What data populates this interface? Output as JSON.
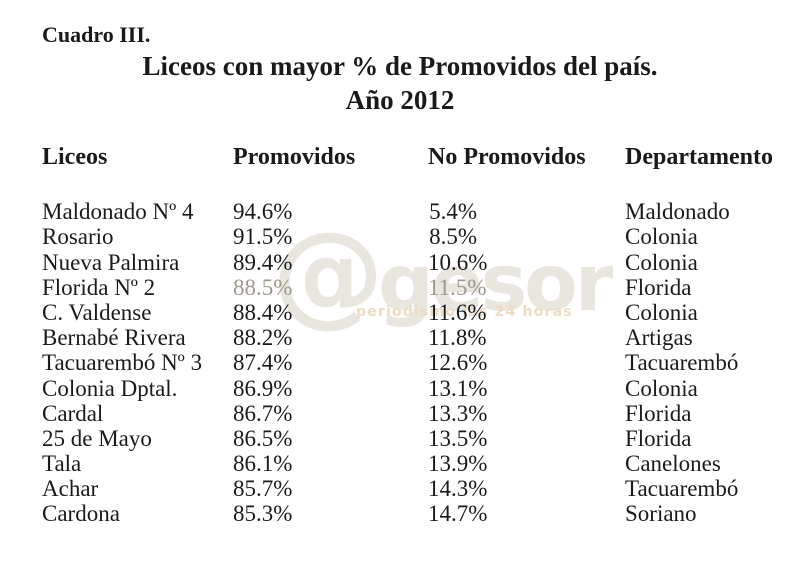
{
  "page": {
    "label": "Cuadro III.",
    "title_line1": "Liceos con mayor % de Promovidos del país.",
    "title_line2": "Año 2012",
    "background_color": "#ffffff",
    "text_color": "#1a1a1a"
  },
  "table": {
    "headers": [
      "Liceos",
      "Promovidos",
      "No Promovidos",
      "Departamento"
    ],
    "rows": [
      {
        "liceo": "Maldonado Nº 4",
        "promovidos": "94.6%",
        "no_promovidos": "5.4%",
        "departamento": "Maldonado"
      },
      {
        "liceo": "Rosario",
        "promovidos": "91.5%",
        "no_promovidos": "8.5%",
        "departamento": "Colonia"
      },
      {
        "liceo": "Nueva Palmira",
        "promovidos": "89.4%",
        "no_promovidos": "10.6%",
        "departamento": "Colonia"
      },
      {
        "liceo": "Florida Nº 2",
        "promovidos": "88.5%",
        "no_promovidos": "11.5%",
        "departamento": "Florida"
      },
      {
        "liceo": "C. Valdense",
        "promovidos": "88.4%",
        "no_promovidos": "11.6%",
        "departamento": "Colonia"
      },
      {
        "liceo": "Bernabé Rivera",
        "promovidos": "88.2%",
        "no_promovidos": "11.8%",
        "departamento": "Artigas"
      },
      {
        "liceo": "Tacuarembó Nº 3",
        "promovidos": "87.4%",
        "no_promovidos": "12.6%",
        "departamento": "Tacuarembó"
      },
      {
        "liceo": "Colonia Dptal.",
        "promovidos": "86.9%",
        "no_promovidos": "13.1%",
        "departamento": "Colonia"
      },
      {
        "liceo": "Cardal",
        "promovidos": "86.7%",
        "no_promovidos": "13.3%",
        "departamento": "Florida"
      },
      {
        "liceo": "25 de Mayo",
        "promovidos": "86.5%",
        "no_promovidos": "13.5%",
        "departamento": "Florida"
      },
      {
        "liceo": "Tala",
        "promovidos": "86.1%",
        "no_promovidos": "13.9%",
        "departamento": "Canelones"
      },
      {
        "liceo": "Achar",
        "promovidos": "85.7%",
        "no_promovidos": "14.3%",
        "departamento": "Tacuarembó"
      },
      {
        "liceo": "Cardona",
        "promovidos": "85.3%",
        "no_promovidos": "14.7%",
        "departamento": "Soriano"
      }
    ]
  },
  "watermark": {
    "at_symbol": "@",
    "brand": "gesor",
    "tagline": "periodismo las 24 horas",
    "logo_color": "#e9e6e0",
    "tagline_color": "#eedbc3"
  },
  "chart_data": {
    "type": "table",
    "title": "Liceos con mayor % de Promovidos del país. Año 2012",
    "columns": [
      "Liceos",
      "Promovidos",
      "No Promovidos",
      "Departamento"
    ],
    "rows": [
      [
        "Maldonado Nº 4",
        94.6,
        5.4,
        "Maldonado"
      ],
      [
        "Rosario",
        91.5,
        8.5,
        "Colonia"
      ],
      [
        "Nueva Palmira",
        89.4,
        10.6,
        "Colonia"
      ],
      [
        "Florida Nº 2",
        88.5,
        11.5,
        "Florida"
      ],
      [
        "C. Valdense",
        88.4,
        11.6,
        "Colonia"
      ],
      [
        "Bernabé Rivera",
        88.2,
        11.8,
        "Artigas"
      ],
      [
        "Tacuarembó Nº 3",
        87.4,
        12.6,
        "Tacuarembó"
      ],
      [
        "Colonia Dptal.",
        86.9,
        13.1,
        "Colonia"
      ],
      [
        "Cardal",
        86.7,
        13.3,
        "Florida"
      ],
      [
        "25 de Mayo",
        86.5,
        13.5,
        "Florida"
      ],
      [
        "Tala",
        86.1,
        13.9,
        "Canelones"
      ],
      [
        "Achar",
        85.7,
        14.3,
        "Tacuarembó"
      ],
      [
        "Cardona",
        85.3,
        14.7,
        "Soriano"
      ]
    ],
    "units": "percent"
  }
}
